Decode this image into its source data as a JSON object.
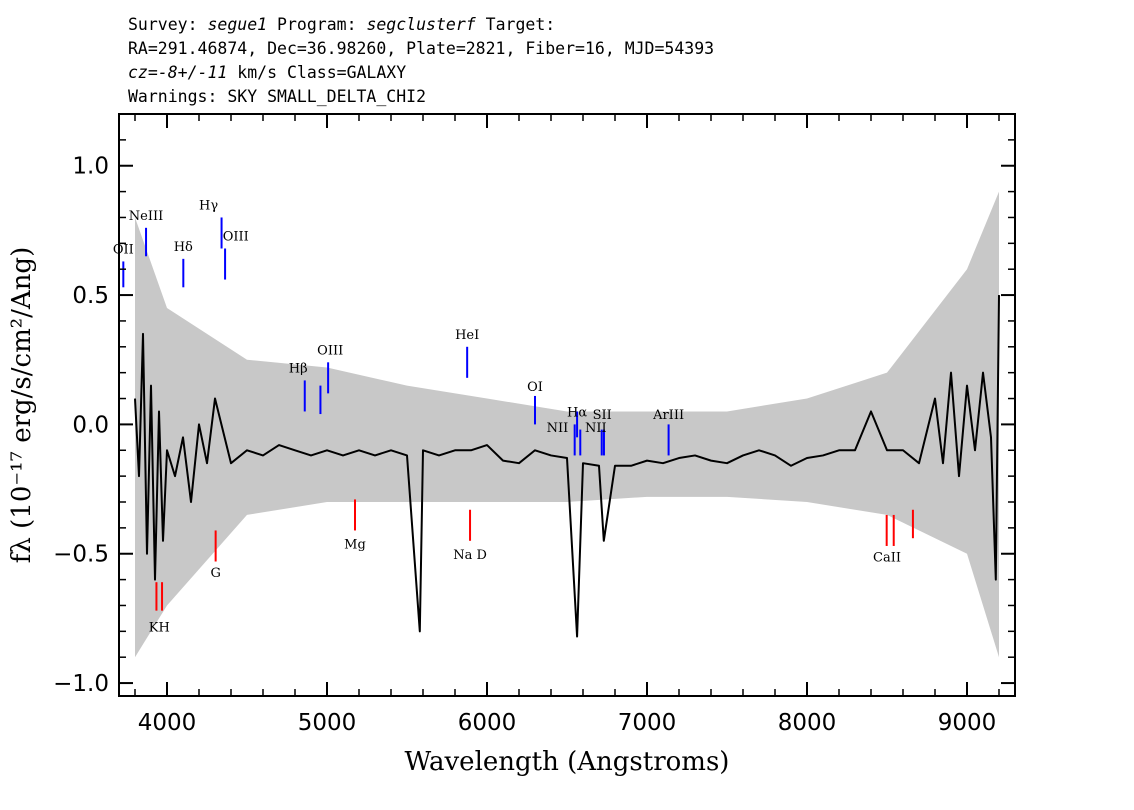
{
  "header": {
    "line1_prefix": "Survey: ",
    "survey": "segue1",
    "program_prefix": " Program: ",
    "program": "segclusterf",
    "target_prefix": " Target:",
    "line2": "RA=291.46874, Dec=36.98260, Plate=2821, Fiber=16, MJD=54393",
    "cz_label": "cz",
    "cz_value": "=-8+/-11",
    "cz_rest": " km/s Class=GALAXY",
    "line4": "Warnings: SKY SMALL_DELTA_CHI2"
  },
  "colors": {
    "flux": "#000000",
    "error": "#c8c8c8",
    "emission": "#0000ff",
    "absorption": "#ff0000"
  },
  "chart_data": {
    "type": "line",
    "xlabel": "Wavelength (Angstroms)",
    "ylabel": "fλ (10⁻¹⁷ erg/s/cm²/Ang)",
    "xlim": [
      3700,
      9300
    ],
    "ylim": [
      -1.05,
      1.2
    ],
    "x_ticks": [
      4000,
      5000,
      6000,
      7000,
      8000,
      9000
    ],
    "x_tick_labels": [
      "4000",
      "5000",
      "6000",
      "7000",
      "8000",
      "9000"
    ],
    "y_ticks": [
      -1.0,
      -0.5,
      0.0,
      0.5,
      1.0
    ],
    "y_tick_labels": [
      "−1.0",
      "−0.5",
      "0.0",
      "0.5",
      "1.0"
    ],
    "grid": false,
    "series": [
      {
        "role": "flux",
        "x": [
          3800,
          3825,
          3850,
          3875,
          3900,
          3925,
          3950,
          3975,
          4000,
          4050,
          4100,
          4150,
          4200,
          4250,
          4300,
          4400,
          4500,
          4600,
          4700,
          4800,
          4900,
          5000,
          5100,
          5200,
          5300,
          5400,
          5500,
          5580,
          5600,
          5700,
          5800,
          5900,
          6000,
          6100,
          6200,
          6300,
          6400,
          6500,
          6563,
          6600,
          6700,
          6730,
          6800,
          6900,
          7000,
          7100,
          7200,
          7300,
          7400,
          7500,
          7600,
          7700,
          7800,
          7900,
          8000,
          8100,
          8200,
          8300,
          8400,
          8500,
          8600,
          8700,
          8800,
          8850,
          8900,
          8950,
          9000,
          9050,
          9100,
          9150,
          9180,
          9200
        ],
        "y": [
          0.1,
          -0.2,
          0.35,
          -0.5,
          0.15,
          -0.6,
          0.05,
          -0.45,
          -0.1,
          -0.2,
          -0.05,
          -0.3,
          0.0,
          -0.15,
          0.1,
          -0.15,
          -0.1,
          -0.12,
          -0.08,
          -0.1,
          -0.12,
          -0.1,
          -0.12,
          -0.1,
          -0.12,
          -0.1,
          -0.12,
          -0.8,
          -0.1,
          -0.12,
          -0.1,
          -0.1,
          -0.08,
          -0.14,
          -0.15,
          -0.1,
          -0.12,
          -0.13,
          -0.82,
          -0.15,
          -0.16,
          -0.45,
          -0.16,
          -0.16,
          -0.14,
          -0.15,
          -0.13,
          -0.12,
          -0.14,
          -0.15,
          -0.12,
          -0.1,
          -0.12,
          -0.16,
          -0.13,
          -0.12,
          -0.1,
          -0.1,
          0.05,
          -0.1,
          -0.1,
          -0.15,
          0.1,
          -0.15,
          0.2,
          -0.2,
          0.15,
          -0.1,
          0.2,
          -0.05,
          -0.6,
          0.5
        ]
      },
      {
        "role": "error-band",
        "x": [
          3800,
          4000,
          4500,
          5000,
          5500,
          6000,
          6500,
          7000,
          7500,
          8000,
          8500,
          9000,
          9200
        ],
        "y_high": [
          0.8,
          0.45,
          0.25,
          0.22,
          0.15,
          0.1,
          0.05,
          0.05,
          0.05,
          0.1,
          0.2,
          0.6,
          0.9
        ],
        "y_low": [
          -0.9,
          -0.7,
          -0.35,
          -0.3,
          -0.3,
          -0.3,
          -0.3,
          -0.28,
          -0.28,
          -0.3,
          -0.35,
          -0.5,
          -0.9
        ]
      }
    ],
    "emission_lines": [
      {
        "label": "OII",
        "x": 3727,
        "y0": 0.53,
        "y1": 0.63
      },
      {
        "label": "NeIII",
        "x": 3869,
        "y0": 0.65,
        "y1": 0.76
      },
      {
        "label": "Hδ",
        "x": 4102,
        "y0": 0.53,
        "y1": 0.64
      },
      {
        "label": "Hγ",
        "x": 4341,
        "y0": 0.68,
        "y1": 0.8
      },
      {
        "label": "OIII",
        "x": 4363,
        "y0": 0.56,
        "y1": 0.68
      },
      {
        "label": "Hβ",
        "x": 4861,
        "y0": 0.05,
        "y1": 0.17
      },
      {
        "label": "OIII",
        "x": 4959,
        "y0": 0.04,
        "y1": 0.15
      },
      {
        "label": "OIII",
        "x": 5007,
        "y0": 0.12,
        "y1": 0.24
      },
      {
        "label": "HeI",
        "x": 5876,
        "y0": 0.18,
        "y1": 0.3
      },
      {
        "label": "OI",
        "x": 6300,
        "y0": 0.0,
        "y1": 0.11
      },
      {
        "label": "NII",
        "x": 6548,
        "y0": -0.12,
        "y1": 0.0
      },
      {
        "label": "Hα",
        "x": 6563,
        "y0": -0.05,
        "y1": 0.05
      },
      {
        "label": "NII",
        "x": 6583,
        "y0": -0.12,
        "y1": -0.02
      },
      {
        "label": "SII",
        "x": 6717,
        "y0": -0.12,
        "y1": -0.02
      },
      {
        "label": "SII",
        "x": 6731,
        "y0": -0.12,
        "y1": -0.02
      },
      {
        "label": "ArIII",
        "x": 7135,
        "y0": -0.12,
        "y1": 0.0
      }
    ],
    "absorption_lines": [
      {
        "label": "K",
        "x": 3934,
        "y0": -0.72,
        "y1": -0.61
      },
      {
        "label": "H",
        "x": 3969,
        "y0": -0.72,
        "y1": -0.61
      },
      {
        "label": "G",
        "x": 4304,
        "y0": -0.53,
        "y1": -0.41
      },
      {
        "label": "Mg",
        "x": 5175,
        "y0": -0.41,
        "y1": -0.29
      },
      {
        "label": "Na D",
        "x": 5894,
        "y0": -0.45,
        "y1": -0.33
      },
      {
        "label": "CaII",
        "x": 8498,
        "y0": -0.47,
        "y1": -0.35
      },
      {
        "label": "CaII",
        "x": 8542,
        "y0": -0.47,
        "y1": -0.35
      },
      {
        "label": "CaII",
        "x": 8662,
        "y0": -0.44,
        "y1": -0.33
      }
    ],
    "line_labels": [
      {
        "text": "OII",
        "x": 3727,
        "y": 0.66,
        "anchor": "middle"
      },
      {
        "text": "NeIII",
        "x": 3869,
        "y": 0.79,
        "anchor": "middle"
      },
      {
        "text": "Hδ",
        "x": 4102,
        "y": 0.67,
        "anchor": "middle"
      },
      {
        "text": "Hγ",
        "x": 4260,
        "y": 0.83,
        "anchor": "middle"
      },
      {
        "text": "OIII",
        "x": 4430,
        "y": 0.71,
        "anchor": "middle"
      },
      {
        "text": "Hβ",
        "x": 4820,
        "y": 0.2,
        "anchor": "middle"
      },
      {
        "text": "OIII",
        "x": 5020,
        "y": 0.27,
        "anchor": "middle"
      },
      {
        "text": "HeI",
        "x": 5876,
        "y": 0.33,
        "anchor": "middle"
      },
      {
        "text": "OI",
        "x": 6300,
        "y": 0.13,
        "anchor": "middle"
      },
      {
        "text": "NII",
        "x": 6440,
        "y": -0.03,
        "anchor": "middle"
      },
      {
        "text": "Hα",
        "x": 6563,
        "y": 0.03,
        "anchor": "middle"
      },
      {
        "text": "SII",
        "x": 6720,
        "y": 0.02,
        "anchor": "middle"
      },
      {
        "text": "NII",
        "x": 6680,
        "y": -0.03,
        "anchor": "middle"
      },
      {
        "text": "ArIII",
        "x": 7135,
        "y": 0.02,
        "anchor": "middle"
      },
      {
        "text": "KH",
        "x": 3952,
        "y": -0.8,
        "anchor": "middle"
      },
      {
        "text": "G",
        "x": 4304,
        "y": -0.59,
        "anchor": "middle"
      },
      {
        "text": "Mg",
        "x": 5175,
        "y": -0.48,
        "anchor": "middle"
      },
      {
        "text": "Na  D",
        "x": 5894,
        "y": -0.52,
        "anchor": "middle"
      },
      {
        "text": "CaII",
        "x": 8500,
        "y": -0.53,
        "anchor": "middle"
      }
    ]
  }
}
